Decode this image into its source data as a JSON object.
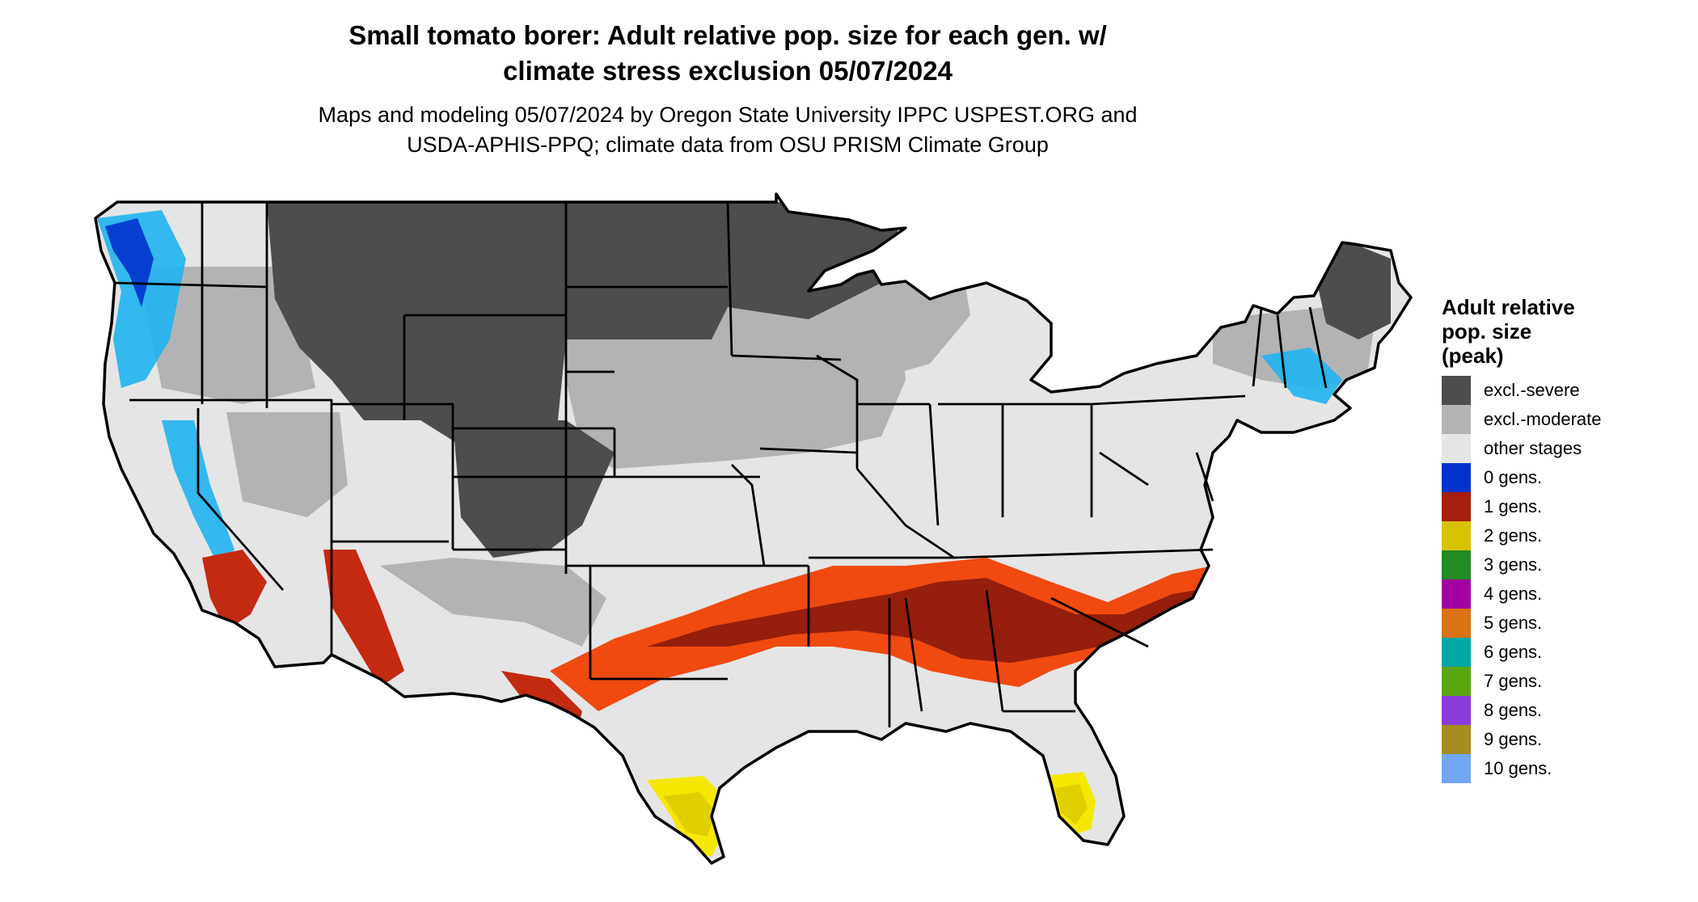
{
  "title": "Small tomato borer: Adult relative pop. size for each gen. w/\nclimate stress exclusion 05/07/2024",
  "subtitle": "Maps and modeling 05/07/2024 by Oregon State University IPPC USPEST.ORG and\nUSDA-APHIS-PPQ; climate data from OSU PRISM Climate Group",
  "legend": {
    "title": "Adult relative\npop. size\n(peak)",
    "items": [
      {
        "label": "excl.-severe",
        "color": "#4d4d4d"
      },
      {
        "label": "excl.-moderate",
        "color": "#b3b3b3"
      },
      {
        "label": "other stages",
        "color": "#e5e5e5"
      },
      {
        "label": "0 gens.",
        "color": "#0033cc"
      },
      {
        "label": "1 gens.",
        "color": "#a61e0e"
      },
      {
        "label": "2 gens.",
        "color": "#d9c200"
      },
      {
        "label": "3 gens.",
        "color": "#228b22"
      },
      {
        "label": "4 gens.",
        "color": "#a300a3"
      },
      {
        "label": "5 gens.",
        "color": "#d97314"
      },
      {
        "label": "6 gens.",
        "color": "#00a6a6"
      },
      {
        "label": "7 gens.",
        "color": "#5aa60e"
      },
      {
        "label": "8 gens.",
        "color": "#8a3ddb"
      },
      {
        "label": "9 gens.",
        "color": "#a68c1f"
      },
      {
        "label": "10 gens.",
        "color": "#6fa8f0"
      }
    ]
  },
  "map_colors": {
    "base": "#e5e5e5",
    "severe": "#4d4d4d",
    "moderate": "#b3b3b3",
    "cold_light": "#1fb3f0",
    "cold_dark": "#0033cc",
    "red_dark": "#8b1a0c",
    "red_mid": "#c42a10",
    "orange": "#f04a10",
    "yellow": "#e0d000",
    "yellow_light": "#f5e800",
    "border": "#000000"
  }
}
